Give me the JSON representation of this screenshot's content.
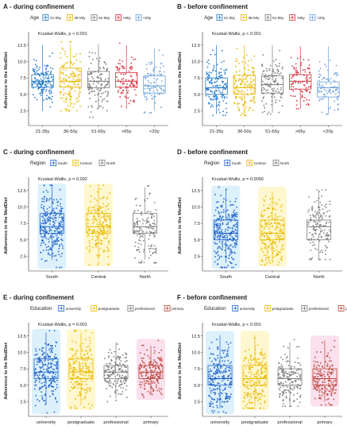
{
  "figure": {
    "panel_order": [
      "A",
      "B",
      "C",
      "D",
      "E",
      "F"
    ]
  },
  "colors": {
    "21-35y": "#1f77c9",
    "36-50y": "#e8b800",
    "51-65y": "#7a7a7a",
    ">65y": "#d62f3c",
    "<20y": "#6a9fd8",
    "South": "#1f5fc9",
    "Central": "#e8b800",
    "North": "#7a7a7a",
    "university": "#1f5fc9",
    "postgraduate": "#e8b800",
    "professional": "#7a7a7a",
    "primary": "#b8463a",
    "halo_blue": "#bfe6f7",
    "halo_yellow": "#fff1a8",
    "halo_pink": "#f7c6e0"
  },
  "chart_data": [
    {
      "id": "A",
      "type": "box-jitter",
      "title": "A - during confinement",
      "legend_title": "Age",
      "categories": [
        "21-35y",
        "36-50y",
        "51-65y",
        ">65y",
        "<20y"
      ],
      "ylabel": "Adherence to the MedDiet",
      "yticks": [
        "2.5",
        "5.0",
        "7.5",
        "10.0",
        "12.5"
      ],
      "ylim": [
        0.5,
        13.8
      ],
      "annotation": "Kruskal-Wallis, p < 0.001",
      "halo": false,
      "series": [
        {
          "name": "21-35y",
          "q1": 6.1,
          "median": 7.0,
          "q3": 8.0,
          "whisker_low": 2.5,
          "whisker_high": 12.5,
          "min": 2.0,
          "max": 13.0,
          "n": 150
        },
        {
          "name": "36-50y",
          "q1": 6.1,
          "median": 7.0,
          "q3": 9.0,
          "whisker_low": 3.0,
          "whisker_high": 12.6,
          "min": 2.5,
          "max": 13.0,
          "n": 150
        },
        {
          "name": "51-65y",
          "q1": 6.0,
          "median": 7.0,
          "q3": 8.5,
          "whisker_low": 2.8,
          "whisker_high": 12.6,
          "min": 1.5,
          "max": 13.0,
          "n": 120
        },
        {
          "name": ">65y",
          "q1": 6.1,
          "median": 7.0,
          "q3": 8.3,
          "whisker_low": 2.8,
          "whisker_high": 12.5,
          "min": 2.5,
          "max": 12.8,
          "n": 90
        },
        {
          "name": "<20y",
          "q1": 5.2,
          "median": 6.3,
          "q3": 7.8,
          "whisker_low": 2.5,
          "whisker_high": 12.0,
          "min": 2.2,
          "max": 13.0,
          "n": 90
        }
      ]
    },
    {
      "id": "B",
      "type": "box-jitter",
      "title": "B - before confinement",
      "legend_title": "Age",
      "categories": [
        "21-35y",
        "36-50y",
        "51-65y",
        ">65y",
        "<20y"
      ],
      "ylabel": "Adherence to the MedDiet",
      "yticks": [
        "2.5",
        "5.0",
        "7.5",
        "10.0",
        "12.5"
      ],
      "ylim": [
        0.5,
        13.8
      ],
      "annotation": "Kruskal-Wallis, p < 0.001",
      "halo": false,
      "series": [
        {
          "name": "21-35y",
          "q1": 5.0,
          "median": 6.0,
          "q3": 7.5,
          "whisker_low": 2.0,
          "whisker_high": 12.5,
          "min": 1.8,
          "max": 13.0,
          "n": 150
        },
        {
          "name": "36-50y",
          "q1": 5.0,
          "median": 6.0,
          "q3": 7.9,
          "whisker_low": 2.0,
          "whisker_high": 12.5,
          "min": 1.8,
          "max": 13.0,
          "n": 150
        },
        {
          "name": "51-65y",
          "q1": 5.2,
          "median": 6.5,
          "q3": 7.8,
          "whisker_low": 2.2,
          "whisker_high": 12.5,
          "min": 2.0,
          "max": 13.0,
          "n": 120
        },
        {
          "name": ">65y",
          "q1": 5.8,
          "median": 7.0,
          "q3": 8.0,
          "whisker_low": 2.8,
          "whisker_high": 12.3,
          "min": 2.5,
          "max": 12.6,
          "n": 90
        },
        {
          "name": "<20y",
          "q1": 4.6,
          "median": 6.0,
          "q3": 6.9,
          "whisker_low": 2.0,
          "whisker_high": 12.3,
          "min": 2.0,
          "max": 12.8,
          "n": 90
        }
      ]
    },
    {
      "id": "C",
      "type": "box-jitter",
      "title": "C - during confinement",
      "legend_title": "Region",
      "categories": [
        "South",
        "Central",
        "North"
      ],
      "ylabel": "Adherence to the MedDiet",
      "yticks": [
        "2.5",
        "5.0",
        "7.5",
        "10.0",
        "12.5"
      ],
      "ylim": [
        0.5,
        13.8
      ],
      "annotation": "Kruskal-Wallis, p = 0.092",
      "halo": true,
      "series": [
        {
          "name": "South",
          "q1": 6.0,
          "median": 7.0,
          "q3": 9.0,
          "whisker_low": 2.0,
          "whisker_high": 13.2,
          "min": 0.8,
          "max": 13.3,
          "n": 260
        },
        {
          "name": "Central",
          "q1": 6.0,
          "median": 7.0,
          "q3": 9.0,
          "whisker_low": 2.0,
          "whisker_high": 13.0,
          "min": 1.2,
          "max": 13.3,
          "n": 200
        },
        {
          "name": "North",
          "q1": 6.0,
          "median": 7.0,
          "q3": 9.0,
          "whisker_low": 2.0,
          "whisker_high": 13.0,
          "min": 1.5,
          "max": 13.2,
          "n": 150
        }
      ]
    },
    {
      "id": "D",
      "type": "box-jitter",
      "title": "D - before confinement",
      "legend_title": "Region",
      "categories": [
        "South",
        "Central",
        "North"
      ],
      "ylabel": "Adherence to the MedDiet",
      "yticks": [
        "2.5",
        "5.0",
        "7.5",
        "10.0",
        "12.5"
      ],
      "ylim": [
        0.5,
        13.8
      ],
      "annotation": "Kruskal-Wallis, p = 0.0056",
      "halo": true,
      "series": [
        {
          "name": "South",
          "q1": 5.0,
          "median": 6.0,
          "q3": 8.0,
          "whisker_low": 1.5,
          "whisker_high": 12.6,
          "min": 0.8,
          "max": 13.0,
          "n": 260
        },
        {
          "name": "Central",
          "q1": 5.0,
          "median": 6.0,
          "q3": 8.0,
          "whisker_low": 1.5,
          "whisker_high": 12.3,
          "min": 1.2,
          "max": 12.8,
          "n": 200
        },
        {
          "name": "North",
          "q1": 5.0,
          "median": 7.0,
          "q3": 8.0,
          "whisker_low": 2.0,
          "whisker_high": 12.5,
          "min": 2.0,
          "max": 12.6,
          "n": 150
        }
      ]
    },
    {
      "id": "E",
      "type": "box-jitter",
      "title": "E - during confinement",
      "legend_title": "Education",
      "categories": [
        "university",
        "postgraduate",
        "professional",
        "primary"
      ],
      "ylabel": "Adherence to the MedDiet",
      "yticks": [
        "2.5",
        "5.0",
        "7.5",
        "10.0",
        "12.5"
      ],
      "ylim": [
        0.5,
        13.8
      ],
      "annotation": "Kruskal-Wallis, p = 0.001",
      "halo": true,
      "series": [
        {
          "name": "university",
          "q1": 6.0,
          "median": 7.0,
          "q3": 9.0,
          "whisker_low": 2.0,
          "whisker_high": 13.0,
          "min": 0.8,
          "max": 13.3,
          "n": 220
        },
        {
          "name": "postgraduate",
          "q1": 6.0,
          "median": 7.0,
          "q3": 9.0,
          "whisker_low": 2.0,
          "whisker_high": 13.0,
          "min": 1.5,
          "max": 13.3,
          "n": 200
        },
        {
          "name": "professional",
          "q1": 6.0,
          "median": 7.0,
          "q3": 8.0,
          "whisker_low": 3.0,
          "whisker_high": 11.5,
          "min": 2.5,
          "max": 12.0,
          "n": 170
        },
        {
          "name": "primary",
          "q1": 6.0,
          "median": 7.0,
          "q3": 8.0,
          "whisker_low": 3.5,
          "whisker_high": 11.0,
          "min": 3.0,
          "max": 11.8,
          "n": 170
        }
      ]
    },
    {
      "id": "F",
      "type": "box-jitter",
      "title": "F - before confinement",
      "legend_title": "Education",
      "categories": [
        "university",
        "postgraduate",
        "professional",
        "primary"
      ],
      "ylabel": "Adherence to the MedDiet",
      "yticks": [
        "2.5",
        "5.0",
        "7.5",
        "10.0",
        "12.5"
      ],
      "ylim": [
        0.5,
        13.8
      ],
      "annotation": "Kruskal-Wallis, p < 0.001",
      "halo": true,
      "series": [
        {
          "name": "university",
          "q1": 5.0,
          "median": 6.0,
          "q3": 8.0,
          "whisker_low": 1.5,
          "whisker_high": 12.6,
          "min": 0.8,
          "max": 13.0,
          "n": 220
        },
        {
          "name": "postgraduate",
          "q1": 5.0,
          "median": 6.0,
          "q3": 8.0,
          "whisker_low": 1.8,
          "whisker_high": 12.6,
          "min": 1.5,
          "max": 13.0,
          "n": 200
        },
        {
          "name": "professional",
          "q1": 5.0,
          "median": 6.0,
          "q3": 7.5,
          "whisker_low": 2.0,
          "whisker_high": 11.5,
          "min": 1.8,
          "max": 12.0,
          "n": 170
        },
        {
          "name": "primary",
          "q1": 5.0,
          "median": 6.0,
          "q3": 7.5,
          "whisker_low": 2.5,
          "whisker_high": 11.8,
          "min": 2.0,
          "max": 12.3,
          "n": 170
        }
      ]
    }
  ]
}
